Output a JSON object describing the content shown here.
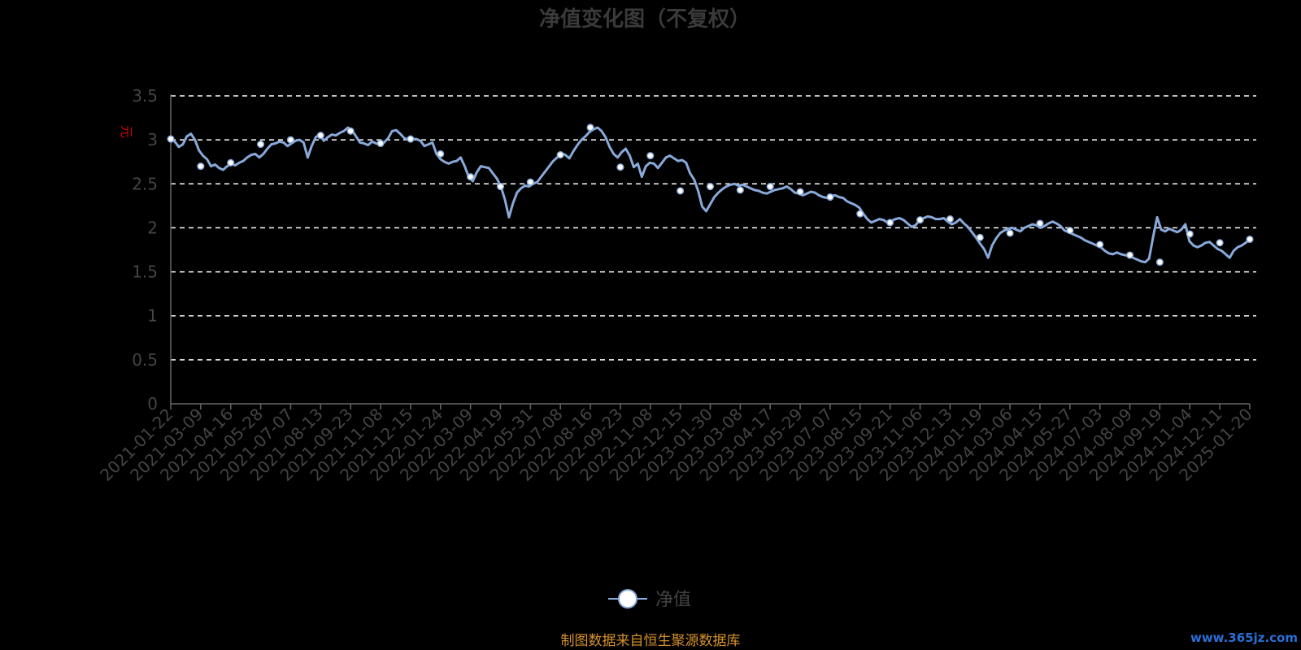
{
  "chart_data": {
    "type": "line",
    "title": "净值变化图（不复权）",
    "ylabel": "元",
    "ylim": [
      0,
      3.5
    ],
    "yticks": [
      "0",
      "0.5",
      "1",
      "1.5",
      "2",
      "2.5",
      "3",
      "3.5"
    ],
    "grid": true,
    "legend_position": "bottom-center",
    "x_tick_labels": [
      "2021-01-22",
      "2021-03-09",
      "2021-04-16",
      "2021-05-28",
      "2021-07-07",
      "2021-08-13",
      "2021-09-23",
      "2021-11-08",
      "2021-12-15",
      "2022-01-24",
      "2022-03-09",
      "2022-04-19",
      "2022-05-31",
      "2022-07-08",
      "2022-08-16",
      "2022-09-23",
      "2022-11-08",
      "2022-12-15",
      "2023-01-30",
      "2023-03-08",
      "2023-04-17",
      "2023-05-29",
      "2023-07-07",
      "2023-08-15",
      "2023-09-21",
      "2023-11-06",
      "2023-12-13",
      "2024-01-19",
      "2024-03-06",
      "2024-04-15",
      "2024-05-27",
      "2024-07-03",
      "2024-08-09",
      "2024-09-19",
      "2024-11-04",
      "2024-12-11",
      "2025-01-20"
    ],
    "series": [
      {
        "name": "净值",
        "color": "#88a9d9",
        "marker_fill": "#ffffff",
        "values": [
          3.01,
          2.7,
          2.74,
          2.95,
          3.0,
          3.05,
          3.1,
          2.96,
          3.01,
          2.84,
          2.58,
          2.47,
          2.52,
          2.83,
          3.14,
          2.69,
          2.82,
          2.42,
          2.47,
          2.43,
          2.47,
          2.41,
          2.35,
          2.16,
          2.06,
          2.09,
          2.1,
          1.89,
          1.94,
          2.05,
          1.97,
          1.81,
          1.69,
          1.61,
          1.93,
          1.83,
          1.87
        ],
        "detail_line": [
          3.01,
          2.98,
          2.92,
          2.95,
          3.04,
          3.07,
          3.0,
          2.88,
          2.82,
          2.78,
          2.7,
          2.72,
          2.68,
          2.66,
          2.7,
          2.73,
          2.71,
          2.74,
          2.76,
          2.8,
          2.83,
          2.84,
          2.8,
          2.84,
          2.9,
          2.95,
          2.96,
          2.98,
          2.97,
          2.93,
          2.96,
          2.99,
          3.0,
          2.97,
          2.8,
          2.93,
          3.03,
          3.06,
          2.99,
          3.03,
          3.06,
          3.05,
          3.08,
          3.1,
          3.14,
          3.11,
          3.04,
          2.97,
          2.96,
          2.94,
          2.98,
          2.96,
          2.95,
          2.97,
          3.02,
          3.1,
          3.11,
          3.07,
          3.02,
          3.0,
          3.01,
          3.01,
          2.99,
          2.93,
          2.95,
          2.97,
          2.84,
          2.78,
          2.75,
          2.73,
          2.75,
          2.76,
          2.8,
          2.7,
          2.58,
          2.53,
          2.63,
          2.7,
          2.69,
          2.68,
          2.62,
          2.56,
          2.47,
          2.32,
          2.12,
          2.28,
          2.4,
          2.45,
          2.48,
          2.47,
          2.5,
          2.52,
          2.58,
          2.64,
          2.7,
          2.76,
          2.8,
          2.85,
          2.83,
          2.79,
          2.87,
          2.94,
          3.0,
          3.04,
          3.09,
          3.12,
          3.14,
          3.1,
          3.03,
          2.92,
          2.84,
          2.8,
          2.86,
          2.9,
          2.82,
          2.69,
          2.73,
          2.58,
          2.7,
          2.74,
          2.73,
          2.68,
          2.74,
          2.8,
          2.82,
          2.79,
          2.76,
          2.77,
          2.74,
          2.62,
          2.55,
          2.42,
          2.24,
          2.19,
          2.27,
          2.35,
          2.4,
          2.44,
          2.47,
          2.49,
          2.5,
          2.48,
          2.49,
          2.47,
          2.45,
          2.43,
          2.42,
          2.4,
          2.39,
          2.41,
          2.43,
          2.44,
          2.45,
          2.47,
          2.44,
          2.4,
          2.39,
          2.37,
          2.39,
          2.41,
          2.4,
          2.37,
          2.35,
          2.34,
          2.36,
          2.37,
          2.35,
          2.34,
          2.3,
          2.28,
          2.26,
          2.23,
          2.16,
          2.1,
          2.06,
          2.08,
          2.1,
          2.09,
          2.06,
          2.08,
          2.1,
          2.11,
          2.09,
          2.05,
          2.01,
          2.03,
          2.09,
          2.11,
          2.13,
          2.12,
          2.1,
          2.1,
          2.11,
          2.07,
          2.04,
          2.06,
          2.1,
          2.05,
          2.01,
          1.95,
          1.89,
          1.82,
          1.76,
          1.66,
          1.8,
          1.88,
          1.94,
          1.97,
          1.99,
          2.0,
          1.98,
          1.96,
          2.0,
          2.02,
          2.04,
          2.03,
          2.0,
          2.02,
          2.05,
          2.07,
          2.05,
          2.02,
          1.97,
          1.95,
          1.93,
          1.91,
          1.89,
          1.86,
          1.84,
          1.82,
          1.8,
          1.78,
          1.74,
          1.71,
          1.7,
          1.72,
          1.7,
          1.69,
          1.68,
          1.66,
          1.64,
          1.62,
          1.61,
          1.65,
          1.9,
          2.12,
          1.98,
          1.96,
          1.99,
          1.97,
          1.95,
          1.98,
          2.04,
          1.85,
          1.8,
          1.78,
          1.8,
          1.83,
          1.84,
          1.8,
          1.76,
          1.74,
          1.7,
          1.66,
          1.74,
          1.78,
          1.8,
          1.83,
          1.87
        ]
      }
    ]
  },
  "legend": {
    "label": "净值"
  },
  "footer": {
    "source": "制图数据来自恒生聚源数据库",
    "watermark": "www.365jz.com"
  },
  "colors": {
    "background": "#000000",
    "title": "#3a3a3a",
    "axis": "#666666",
    "tick_text": "#444444",
    "grid": "#ffffff",
    "unit": "#cc0000",
    "source": "#d4912a",
    "watermark": "#2a6fd6"
  }
}
